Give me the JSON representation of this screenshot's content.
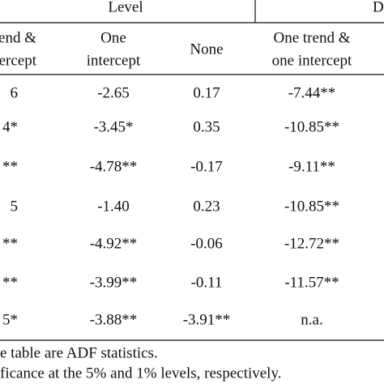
{
  "table": {
    "group_headers": [
      "Level",
      "D"
    ],
    "columns": [
      [
        "rend &",
        "ntercept"
      ],
      [
        "One",
        "intercept"
      ],
      [
        "None"
      ],
      [
        "One trend &",
        "one intercept"
      ]
    ],
    "rows": [
      [
        "6",
        "-2.65",
        "0.17",
        "-7.44**"
      ],
      [
        "4*",
        "-3.45*",
        "0.35",
        "-10.85**"
      ],
      [
        "**",
        "-4.78**",
        "-0.17",
        "-9.11**"
      ],
      [
        "5",
        "-1.40",
        "0.23",
        "-10.85**"
      ],
      [
        "**",
        "-4.92**",
        "-0.06",
        "-12.72**"
      ],
      [
        "**",
        "-3.99**",
        "-0.11",
        "-11.57**"
      ],
      [
        "5*",
        "-3.88**",
        "-3.91**",
        "n.a."
      ]
    ],
    "notes": [
      "e table are ADF statistics.",
      "ficance at the 5% and 1% levels, respectively."
    ]
  }
}
